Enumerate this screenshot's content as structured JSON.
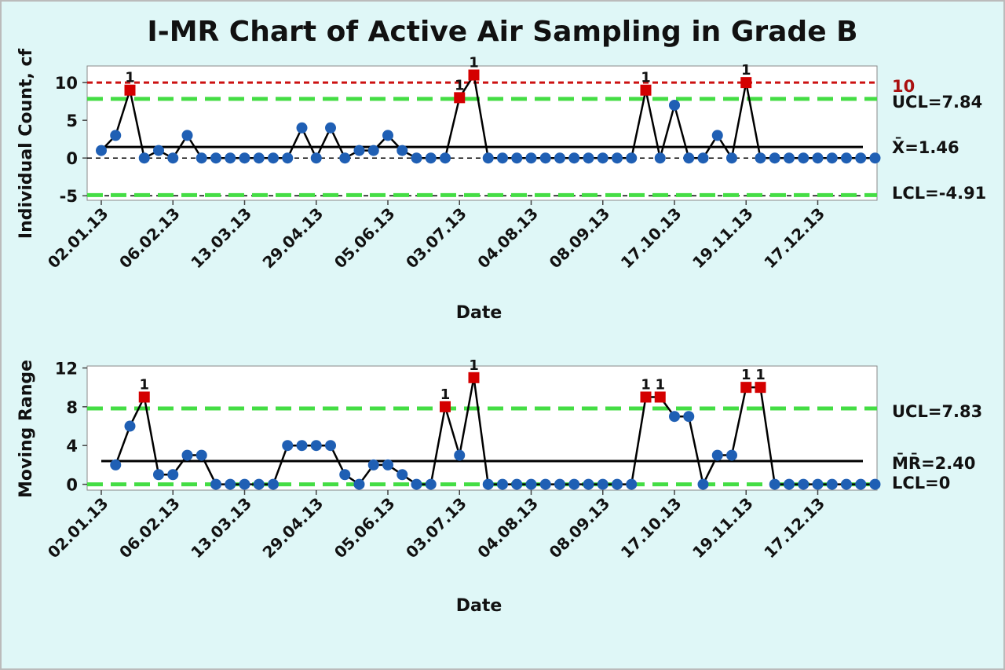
{
  "title": "I-MR Chart of Active Air Sampling in Grade B",
  "colors": {
    "background": "#dff7f7",
    "plot_bg": "#ffffff",
    "point": "#1f5fb4",
    "flag": "#d40000",
    "center": "#000000",
    "limit": "#44dd44",
    "spec": "#cc1111"
  },
  "chart_data": [
    {
      "name": "individual",
      "type": "line",
      "ylabel": "Individual Count, cf",
      "xlabel": "Date",
      "ylim": [
        -5.6,
        12.2
      ],
      "yticks": [
        -5,
        0,
        5,
        10
      ],
      "ytick_labels": [
        "-5",
        "0",
        "5",
        "10"
      ],
      "xtick_labels": [
        "02.01.13",
        "06.02.13",
        "13.03.13",
        "29.04.13",
        "05.06.13",
        "03.07.13",
        "04.08.13",
        "08.09.13",
        "17.10.13",
        "19.11.13",
        "17.12.13"
      ],
      "xtick_positions": [
        1,
        6,
        11,
        16,
        21,
        26,
        31,
        36,
        41,
        46,
        51
      ],
      "values": [
        1,
        3,
        9,
        0,
        1,
        0,
        3,
        0,
        0,
        0,
        0,
        0,
        0,
        0,
        4,
        0,
        4,
        0,
        1,
        1,
        3,
        1,
        0,
        0,
        0,
        8,
        11,
        0,
        0,
        0,
        0,
        0,
        0,
        0,
        0,
        0,
        0,
        0,
        9,
        0,
        7,
        0,
        0,
        3,
        0,
        10,
        0,
        0,
        0,
        0,
        0,
        0,
        0,
        0,
        0
      ],
      "flagged_index": [
        3,
        26,
        27,
        39,
        46
      ],
      "flag_label": "1",
      "lines": {
        "spec": {
          "value": 10,
          "label": "10"
        },
        "ucl": {
          "value": 7.84,
          "label": "UCL=7.84"
        },
        "center": {
          "value": 1.46,
          "label": "X=1.46"
        },
        "zero": {
          "value": 0
        },
        "minus5": {
          "value": -5
        },
        "lcl": {
          "value": -4.91,
          "label": "LCL=-4.91"
        }
      }
    },
    {
      "name": "moving_range",
      "type": "line",
      "ylabel": "Moving Range",
      "xlabel": "Date",
      "ylim": [
        -0.6,
        12.2
      ],
      "yticks": [
        0,
        4,
        8,
        12
      ],
      "ytick_labels": [
        "0",
        "4",
        "8",
        "12"
      ],
      "xtick_labels": [
        "02.01.13",
        "06.02.13",
        "13.03.13",
        "29.04.13",
        "05.06.13",
        "03.07.13",
        "04.08.13",
        "08.09.13",
        "17.10.13",
        "19.11.13",
        "17.12.13"
      ],
      "xtick_positions": [
        1,
        6,
        11,
        16,
        21,
        26,
        31,
        36,
        41,
        46,
        51
      ],
      "start_index": 2,
      "values": [
        2,
        6,
        9,
        1,
        1,
        3,
        3,
        0,
        0,
        0,
        0,
        0,
        4,
        4,
        4,
        4,
        1,
        0,
        2,
        2,
        1,
        0,
        0,
        8,
        3,
        11,
        0,
        0,
        0,
        0,
        0,
        0,
        0,
        0,
        0,
        0,
        0,
        9,
        9,
        7,
        7,
        0,
        3,
        3,
        10,
        10,
        0,
        0,
        0,
        0,
        0,
        0,
        0,
        0
      ],
      "flagged_index": [
        4,
        25,
        27,
        39,
        40,
        46,
        47
      ],
      "flag_label": "1",
      "lines": {
        "ucl": {
          "value": 7.83,
          "label": "UCL=7.83"
        },
        "center": {
          "value": 2.4,
          "label": "MR=2.40"
        },
        "lcl": {
          "value": 0,
          "label": "LCL=0"
        }
      }
    }
  ]
}
